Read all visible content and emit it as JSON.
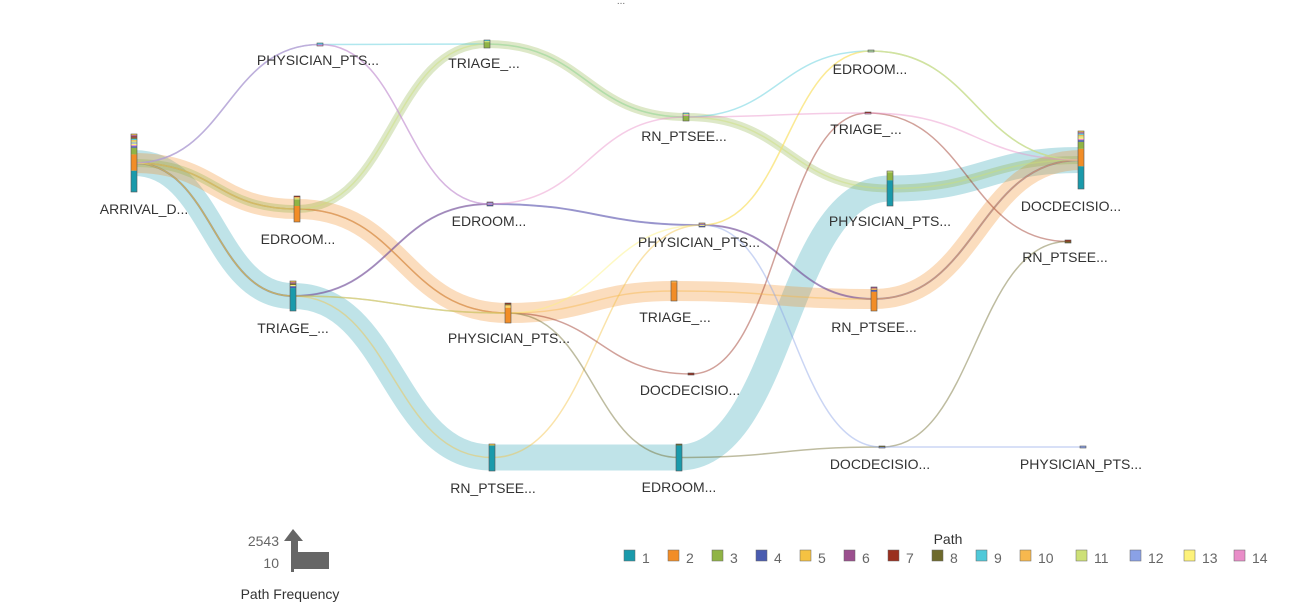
{
  "chart_data": {
    "type": "sankey",
    "title": "",
    "nodes": [
      {
        "id": "arrival",
        "label": "ARRIVAL_D...",
        "stage": 0
      },
      {
        "id": "s1_physician",
        "label": "PHYSICIAN_PTS...",
        "stage": 1
      },
      {
        "id": "s1_edroom",
        "label": "EDROOM...",
        "stage": 1
      },
      {
        "id": "s1_triage",
        "label": "TRIAGE_...",
        "stage": 1
      },
      {
        "id": "s2_triage",
        "label": "TRIAGE_...",
        "stage": 2
      },
      {
        "id": "s2_edroom",
        "label": "EDROOM...",
        "stage": 2
      },
      {
        "id": "s2_physician",
        "label": "PHYSICIAN_PTS...",
        "stage": 2
      },
      {
        "id": "s2_rnptsee",
        "label": "RN_PTSEE...",
        "stage": 2
      },
      {
        "id": "s3_rnptsee",
        "label": "RN_PTSEE...",
        "stage": 3
      },
      {
        "id": "s3_physician",
        "label": "PHYSICIAN_PTS...",
        "stage": 3
      },
      {
        "id": "s3_triage",
        "label": "TRIAGE_...",
        "stage": 3
      },
      {
        "id": "s3_docdecision",
        "label": "DOCDECISIO...",
        "stage": 3
      },
      {
        "id": "s3_edroom",
        "label": "EDROOM...",
        "stage": 3
      },
      {
        "id": "s4_edroom",
        "label": "EDROOM...",
        "stage": 4
      },
      {
        "id": "s4_triage",
        "label": "TRIAGE_...",
        "stage": 4
      },
      {
        "id": "s4_physician",
        "label": "PHYSICIAN_PTS...",
        "stage": 4
      },
      {
        "id": "s4_rnptsee",
        "label": "RN_PTSEE...",
        "stage": 4
      },
      {
        "id": "s4_docdecision",
        "label": "DOCDECISIO...",
        "stage": 4
      },
      {
        "id": "s5_docdecision",
        "label": "DOCDECISIO...",
        "stage": 5
      },
      {
        "id": "s5_rnptsee",
        "label": "RN_PTSEE...",
        "stage": 5
      },
      {
        "id": "s5_physician",
        "label": "PHYSICIAN_PTS...",
        "stage": 5
      }
    ],
    "paths": [
      {
        "name": "1",
        "color": "#1a9aab",
        "nodes": [
          "arrival",
          "s1_triage",
          "s2_rnptsee",
          "s3_edroom",
          "s4_physician",
          "s5_docdecision"
        ]
      },
      {
        "name": "2",
        "color": "#f28d27",
        "nodes": [
          "arrival",
          "s1_edroom",
          "s2_physician",
          "s3_triage",
          "s4_rnptsee",
          "s5_docdecision"
        ]
      },
      {
        "name": "3",
        "color": "#90b445",
        "nodes": [
          "arrival",
          "s1_edroom",
          "s2_triage",
          "s3_rnptsee",
          "s4_physician",
          "s5_docdecision"
        ]
      },
      {
        "name": "4",
        "color": "#4a5cb0",
        "nodes": [
          "arrival",
          "s1_triage",
          "s2_edroom",
          "s3_physician",
          "s4_rnptsee",
          "s5_docdecision"
        ]
      },
      {
        "name": "5",
        "color": "#f5c242",
        "nodes": [
          "arrival",
          "s1_triage",
          "s2_rnptsee",
          "s3_physician",
          "s4_edroom",
          "s5_docdecision"
        ]
      },
      {
        "name": "6",
        "color": "#9b4f8e",
        "nodes": [
          "arrival",
          "s1_triage",
          "s2_edroom",
          "s3_physician",
          "s4_rnptsee",
          "s5_docdecision"
        ]
      },
      {
        "name": "7",
        "color": "#9a2f1e",
        "nodes": [
          "arrival",
          "s1_edroom",
          "s2_physician",
          "s3_docdecision",
          "s4_triage",
          "s5_rnptsee"
        ]
      },
      {
        "name": "8",
        "color": "#6e6a2c",
        "nodes": [
          "arrival",
          "s1_triage",
          "s2_physician",
          "s3_edroom",
          "s4_docdecision",
          "s5_rnptsee"
        ]
      },
      {
        "name": "9",
        "color": "#50c9d9",
        "nodes": [
          "arrival",
          "s1_physician",
          "s2_triage",
          "s3_rnptsee",
          "s4_edroom",
          "s5_docdecision"
        ]
      },
      {
        "name": "10",
        "color": "#f7b84e",
        "nodes": [
          "arrival",
          "s1_edroom",
          "s2_physician",
          "s3_triage",
          "s4_rnptsee",
          "s5_docdecision"
        ]
      },
      {
        "name": "11",
        "color": "#cde077",
        "nodes": [
          "arrival",
          "s1_edroom",
          "s2_triage",
          "s3_rnptsee",
          "s4_physician",
          "s5_docdecision"
        ]
      },
      {
        "name": "12",
        "color": "#8aa1e6",
        "nodes": [
          "arrival",
          "s1_physician",
          "s2_edroom",
          "s3_physician",
          "s4_docdecision",
          "s5_physician"
        ]
      },
      {
        "name": "13",
        "color": "#fdf27a",
        "nodes": [
          "arrival",
          "s1_triage",
          "s2_physician",
          "s3_physician",
          "s4_edroom",
          "s5_docdecision"
        ]
      },
      {
        "name": "14",
        "color": "#e98dc8",
        "nodes": [
          "arrival",
          "s1_physician",
          "s2_edroom",
          "s3_rnptsee",
          "s4_triage",
          "s5_docdecision"
        ]
      }
    ],
    "legend": {
      "title": "Path",
      "placement": "bottom-right",
      "items": [
        "1",
        "2",
        "3",
        "4",
        "5",
        "6",
        "7",
        "8",
        "9",
        "10",
        "11",
        "12",
        "13",
        "14"
      ]
    },
    "frequency_legend": {
      "title": "Path Frequency",
      "max_label": "2543",
      "min_label": "10",
      "placement": "bottom-left"
    },
    "top_marker": "..."
  }
}
